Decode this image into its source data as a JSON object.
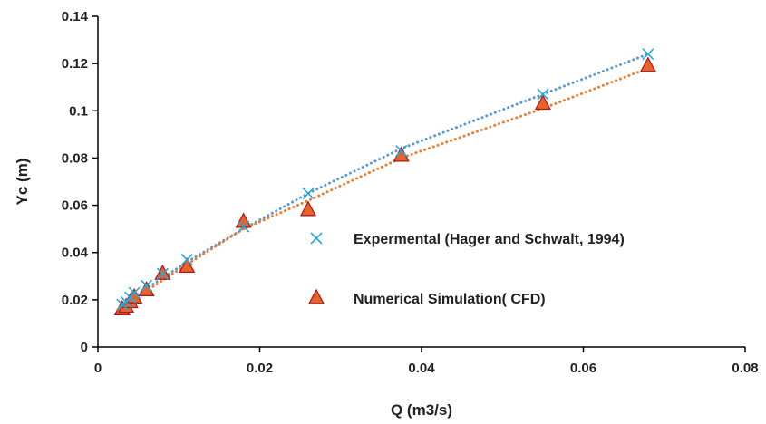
{
  "chart_data": {
    "type": "scatter",
    "xlabel": "Q (m3/s)",
    "ylabel": "Yc (m)",
    "xlim": [
      0,
      0.08
    ],
    "ylim": [
      0,
      0.14
    ],
    "x_ticks": [
      0,
      0.02,
      0.04,
      0.06,
      0.08
    ],
    "y_ticks": [
      0,
      0.02,
      0.04,
      0.06,
      0.08,
      0.1,
      0.12,
      0.14
    ],
    "x_tick_labels": [
      "0",
      "0.02",
      "0.04",
      "0.06",
      "0.08"
    ],
    "y_tick_labels": [
      "0",
      "0.02",
      "0.04",
      "0.06",
      "0.08",
      "0.1",
      "0.12",
      "0.14"
    ],
    "grid": false,
    "legend_position": "center-right",
    "series": [
      {
        "name": "Expermental (Hager and Schwalt, 1994)",
        "marker": "x",
        "color": "#2aa8d8",
        "trend_color": "#5b9bd5",
        "x": [
          0.003,
          0.0035,
          0.004,
          0.0045,
          0.006,
          0.008,
          0.011,
          0.018,
          0.026,
          0.0375,
          0.055,
          0.068
        ],
        "y": [
          0.018,
          0.019,
          0.021,
          0.023,
          0.026,
          0.031,
          0.037,
          0.051,
          0.065,
          0.083,
          0.107,
          0.124
        ],
        "trend": [
          [
            0.003,
            0.018
          ],
          [
            0.011,
            0.036
          ],
          [
            0.018,
            0.05
          ],
          [
            0.026,
            0.065
          ],
          [
            0.0375,
            0.084
          ],
          [
            0.055,
            0.107
          ],
          [
            0.068,
            0.124
          ]
        ]
      },
      {
        "name": "Numerical Simulation( CFD)",
        "marker": "triangle",
        "color": "#e8622a",
        "edge_color": "#b01c1c",
        "trend_color": "#ed7d31",
        "x": [
          0.003,
          0.0035,
          0.004,
          0.0045,
          0.006,
          0.008,
          0.011,
          0.018,
          0.026,
          0.0375,
          0.055,
          0.068
        ],
        "y": [
          0.016,
          0.017,
          0.019,
          0.021,
          0.024,
          0.031,
          0.034,
          0.053,
          0.058,
          0.081,
          0.103,
          0.119
        ],
        "trend": [
          [
            0.003,
            0.017
          ],
          [
            0.011,
            0.035
          ],
          [
            0.018,
            0.05
          ],
          [
            0.026,
            0.062
          ],
          [
            0.0375,
            0.08
          ],
          [
            0.055,
            0.101
          ],
          [
            0.068,
            0.118
          ]
        ]
      }
    ]
  }
}
